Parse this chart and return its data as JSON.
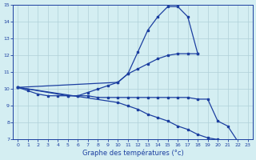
{
  "bg_color": "#d4eef2",
  "line_color": "#1c3fa0",
  "grid_color": "#b0d0d8",
  "xlabel": "Graphe des températures (°c)",
  "xlim": [
    -0.5,
    23.5
  ],
  "ylim": [
    7,
    15
  ],
  "yticks": [
    7,
    8,
    9,
    10,
    11,
    12,
    13,
    14,
    15
  ],
  "xticks": [
    0,
    1,
    2,
    3,
    4,
    5,
    6,
    7,
    8,
    9,
    10,
    11,
    12,
    13,
    14,
    15,
    16,
    17,
    18,
    19,
    20,
    21,
    22,
    23
  ],
  "line1_x": [
    0,
    1,
    2,
    3,
    4,
    5,
    6,
    7,
    8,
    9,
    10,
    11,
    12,
    13,
    14,
    15,
    16,
    17,
    18
  ],
  "line1_y": [
    10.1,
    9.9,
    9.7,
    9.6,
    9.6,
    9.6,
    9.6,
    9.8,
    10.0,
    10.2,
    10.4,
    10.9,
    12.2,
    13.5,
    14.3,
    14.9,
    14.9,
    14.3,
    12.1
  ],
  "line2_x": [
    0,
    10,
    11,
    12,
    13,
    14,
    15,
    16,
    17,
    18
  ],
  "line2_y": [
    10.1,
    10.4,
    10.9,
    11.2,
    11.5,
    11.8,
    12.0,
    12.1,
    12.1,
    12.1
  ],
  "line3_x": [
    0,
    5,
    6,
    7,
    8,
    9,
    10,
    11,
    12,
    13,
    14,
    15,
    16,
    17,
    18,
    19,
    20,
    21,
    22
  ],
  "line3_y": [
    10.1,
    9.6,
    9.6,
    9.6,
    9.5,
    9.5,
    9.5,
    9.5,
    9.5,
    9.5,
    9.5,
    9.5,
    9.5,
    9.5,
    9.4,
    9.4,
    8.1,
    7.8,
    6.9
  ],
  "line4_x": [
    0,
    10,
    11,
    12,
    13,
    14,
    15,
    16,
    17,
    18,
    19,
    20,
    21,
    22
  ],
  "line4_y": [
    10.1,
    9.2,
    9.0,
    8.8,
    8.5,
    8.3,
    8.1,
    7.8,
    7.6,
    7.3,
    7.1,
    7.0,
    6.9,
    6.85
  ]
}
